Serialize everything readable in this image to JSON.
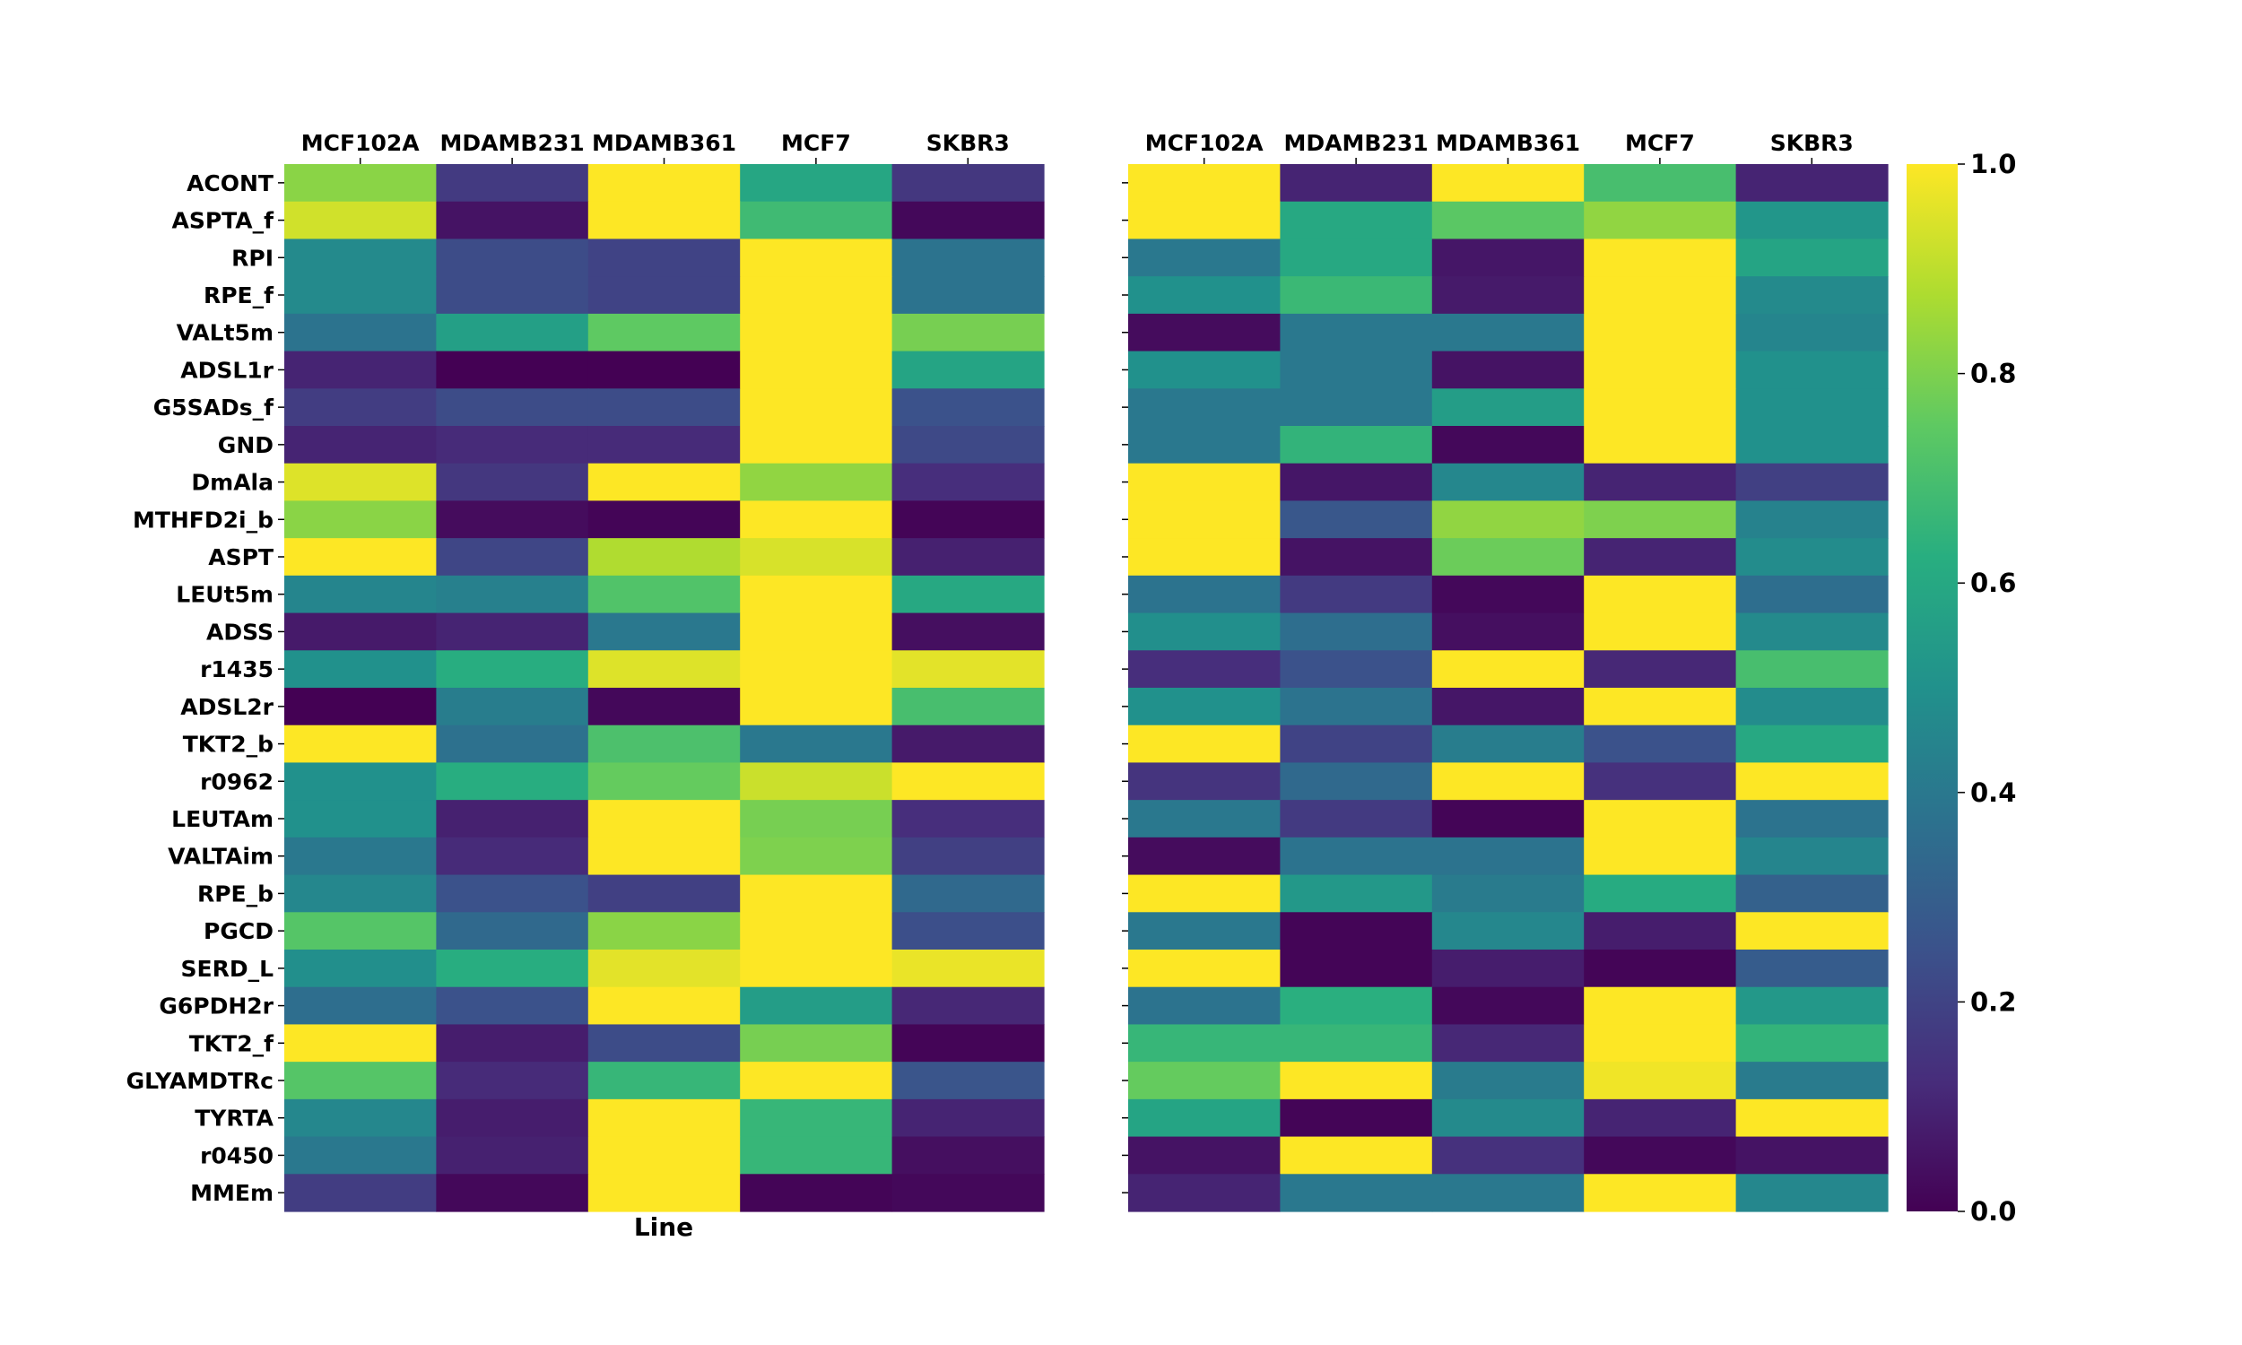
{
  "chart_data": [
    {
      "type": "heatmap",
      "title": "",
      "xlabel": "Line",
      "ylabel": "",
      "columns": [
        "MCF102A",
        "MDAMB231",
        "MDAMB361",
        "MCF7",
        "SKBR3"
      ],
      "rows": [
        "ACONT",
        "ASPTA_f",
        "RPI",
        "RPE_f",
        "VALt5m",
        "ADSL1r",
        "G5SADs_f",
        "GND",
        "DmAla",
        "MTHFD2i_b",
        "ASPT",
        "LEUt5m",
        "ADSS",
        "r1435",
        "ADSL2r",
        "TKT2_b",
        "r0962",
        "LEUTAm",
        "VALTAim",
        "RPE_b",
        "PGCD",
        "SERD_L",
        "G6PDH2r",
        "TKT2_f",
        "GLYAMDTRc",
        "TYRTA",
        "r0450",
        "MMEm"
      ],
      "values": [
        [
          0.82,
          0.17,
          1.0,
          0.59,
          0.16
        ],
        [
          0.93,
          0.05,
          1.0,
          0.68,
          0.02
        ],
        [
          0.47,
          0.23,
          0.2,
          1.0,
          0.38
        ],
        [
          0.47,
          0.23,
          0.2,
          1.0,
          0.38
        ],
        [
          0.38,
          0.56,
          0.75,
          1.0,
          0.79
        ],
        [
          0.1,
          0.0,
          0.0,
          1.0,
          0.58
        ],
        [
          0.18,
          0.23,
          0.23,
          1.0,
          0.25
        ],
        [
          0.1,
          0.12,
          0.12,
          1.0,
          0.22
        ],
        [
          0.95,
          0.16,
          1.0,
          0.83,
          0.13
        ],
        [
          0.82,
          0.03,
          0.01,
          1.0,
          0.01
        ],
        [
          1.0,
          0.21,
          0.88,
          0.94,
          0.09
        ],
        [
          0.45,
          0.43,
          0.72,
          1.0,
          0.6
        ],
        [
          0.07,
          0.1,
          0.4,
          1.0,
          0.04
        ],
        [
          0.5,
          0.62,
          0.95,
          1.0,
          0.96
        ],
        [
          0.0,
          0.42,
          0.02,
          1.0,
          0.7
        ],
        [
          1.0,
          0.37,
          0.71,
          0.4,
          0.07
        ],
        [
          0.5,
          0.62,
          0.76,
          0.92,
          1.0
        ],
        [
          0.5,
          0.09,
          1.0,
          0.79,
          0.13
        ],
        [
          0.4,
          0.12,
          1.0,
          0.8,
          0.19
        ],
        [
          0.46,
          0.25,
          0.19,
          1.0,
          0.34
        ],
        [
          0.73,
          0.34,
          0.82,
          1.0,
          0.24
        ],
        [
          0.49,
          0.62,
          0.96,
          1.0,
          0.97
        ],
        [
          0.36,
          0.25,
          1.0,
          0.55,
          0.11
        ],
        [
          1.0,
          0.08,
          0.23,
          0.79,
          0.01
        ],
        [
          0.73,
          0.12,
          0.66,
          1.0,
          0.26
        ],
        [
          0.46,
          0.08,
          1.0,
          0.66,
          0.1
        ],
        [
          0.4,
          0.09,
          1.0,
          0.66,
          0.04
        ],
        [
          0.18,
          0.02,
          1.0,
          0.01,
          0.02
        ]
      ]
    },
    {
      "type": "heatmap",
      "title": "",
      "xlabel": "",
      "ylabel": "",
      "columns": [
        "MCF102A",
        "MDAMB231",
        "MDAMB361",
        "MCF7",
        "SKBR3"
      ],
      "values": [
        [
          1.0,
          0.1,
          1.0,
          0.7,
          0.1
        ],
        [
          1.0,
          0.6,
          0.74,
          0.83,
          0.52
        ],
        [
          0.4,
          0.6,
          0.06,
          1.0,
          0.58
        ],
        [
          0.5,
          0.67,
          0.07,
          1.0,
          0.47
        ],
        [
          0.03,
          0.4,
          0.4,
          1.0,
          0.45
        ],
        [
          0.5,
          0.4,
          0.05,
          1.0,
          0.5
        ],
        [
          0.4,
          0.4,
          0.55,
          1.0,
          0.5
        ],
        [
          0.4,
          0.65,
          0.02,
          1.0,
          0.5
        ],
        [
          1.0,
          0.06,
          0.46,
          0.1,
          0.19
        ],
        [
          1.0,
          0.27,
          0.83,
          0.8,
          0.44
        ],
        [
          1.0,
          0.05,
          0.77,
          0.1,
          0.48
        ],
        [
          0.38,
          0.17,
          0.02,
          1.0,
          0.36
        ],
        [
          0.49,
          0.36,
          0.04,
          1.0,
          0.47
        ],
        [
          0.13,
          0.25,
          1.0,
          0.11,
          0.7
        ],
        [
          0.5,
          0.38,
          0.06,
          1.0,
          0.48
        ],
        [
          1.0,
          0.2,
          0.42,
          0.25,
          0.6
        ],
        [
          0.15,
          0.34,
          1.0,
          0.14,
          1.0
        ],
        [
          0.4,
          0.17,
          0.01,
          1.0,
          0.38
        ],
        [
          0.03,
          0.38,
          0.38,
          1.0,
          0.45
        ],
        [
          1.0,
          0.53,
          0.41,
          0.61,
          0.31
        ],
        [
          0.4,
          0.01,
          0.46,
          0.08,
          1.0
        ],
        [
          1.0,
          0.01,
          0.08,
          0.01,
          0.29
        ],
        [
          0.38,
          0.63,
          0.02,
          1.0,
          0.53
        ],
        [
          0.66,
          0.66,
          0.11,
          1.0,
          0.65
        ],
        [
          0.76,
          1.0,
          0.41,
          0.98,
          0.41
        ],
        [
          0.58,
          0.01,
          0.47,
          0.1,
          1.0
        ],
        [
          0.05,
          1.0,
          0.14,
          0.02,
          0.05
        ],
        [
          0.1,
          0.4,
          0.4,
          1.0,
          0.46
        ]
      ]
    }
  ],
  "colorbar": {
    "colormap": "viridis",
    "range": [
      0.0,
      1.0
    ],
    "ticks": [
      "0.0",
      "0.2",
      "0.4",
      "0.6",
      "0.8",
      "1.0"
    ]
  }
}
